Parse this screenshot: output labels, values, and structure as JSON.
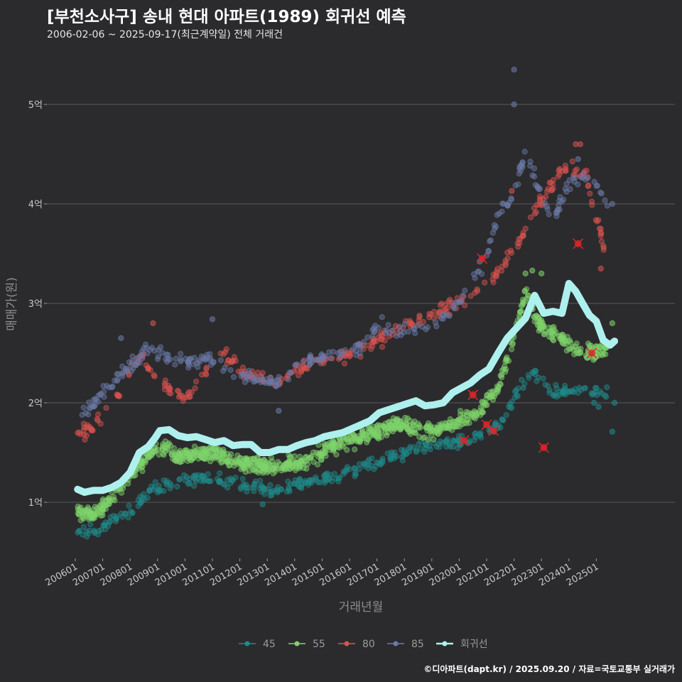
{
  "chart_data": {
    "type": "scatter",
    "title": "[부천소사구] 송내 현대 아파트(1989) 회귀선 예측",
    "subtitle": "2006-02-06 ~ 2025-09-17(최근계약일) 전체 거래건",
    "xlabel": "거래년월",
    "ylabel": "매매가(원)",
    "caption": "©디아파트(dapt.kr) / 2025.09.20 / 자료=국토교통부 실거래가",
    "xlim": [
      "2006-01",
      "2025-10"
    ],
    "ylim": [
      0.45,
      5.6
    ],
    "y_unit": "억",
    "y_ticks": [
      {
        "value": 1,
        "label": "1억"
      },
      {
        "value": 2,
        "label": "2억"
      },
      {
        "value": 3,
        "label": "3억"
      },
      {
        "value": 4,
        "label": "4억"
      },
      {
        "value": 5,
        "label": "5억"
      }
    ],
    "x_ticks": [
      "200601",
      "200701",
      "200801",
      "200901",
      "201001",
      "201101",
      "201201",
      "201301",
      "201401",
      "201501",
      "201601",
      "201701",
      "201801",
      "201901",
      "202001",
      "202101",
      "202201",
      "202301",
      "202401",
      "202501"
    ],
    "grid": "horizontal",
    "legend_position": "bottom",
    "colors": {
      "45": "#1f8a8a",
      "55": "#7ed36a",
      "80": "#d9534f",
      "85": "#6b7aa8",
      "회귀선": "#aef0ee",
      "cancelled": "#e0262a"
    },
    "series": [
      {
        "name": "45",
        "anchors": [
          [
            "2006-02",
            0.72
          ],
          [
            "2006-09",
            0.7
          ],
          [
            "2007-03",
            0.78
          ],
          [
            "2007-10",
            0.85
          ],
          [
            "2008-03",
            0.95
          ],
          [
            "2008-09",
            1.12
          ],
          [
            "2009-06",
            1.18
          ],
          [
            "2010-01",
            1.22
          ],
          [
            "2010-09",
            1.25
          ],
          [
            "2011-06",
            1.22
          ],
          [
            "2012-06",
            1.15
          ],
          [
            "2013-03",
            1.12
          ],
          [
            "2014-01",
            1.18
          ],
          [
            "2014-09",
            1.22
          ],
          [
            "2015-06",
            1.25
          ],
          [
            "2016-03",
            1.32
          ],
          [
            "2016-09",
            1.38
          ],
          [
            "2017-06",
            1.45
          ],
          [
            "2018-03",
            1.52
          ],
          [
            "2018-09",
            1.55
          ],
          [
            "2019-06",
            1.58
          ],
          [
            "2020-03",
            1.62
          ],
          [
            "2020-09",
            1.65
          ],
          [
            "2021-03",
            1.72
          ],
          [
            "2021-09",
            1.85
          ],
          [
            "2022-03",
            2.15
          ],
          [
            "2022-09",
            2.3
          ],
          [
            "2023-06",
            2.1
          ],
          [
            "2024-03",
            2.15
          ],
          [
            "2024-09",
            2.12
          ],
          [
            "2025-06",
            2.1
          ]
        ],
        "outliers": [
          [
            "2012-11",
            0.98
          ],
          [
            "2022-05",
            2.15
          ],
          [
            "2024-12",
            2.0
          ],
          [
            "2025-02",
            1.96
          ],
          [
            "2025-08",
            1.71
          ],
          [
            "2025-09",
            2.0
          ]
        ],
        "cancelled": [
          [
            "2021-04",
            1.72
          ],
          [
            "2023-02",
            1.55
          ]
        ]
      },
      {
        "name": "55",
        "anchors": [
          [
            "2006-02",
            0.9
          ],
          [
            "2006-08",
            0.88
          ],
          [
            "2007-01",
            0.92
          ],
          [
            "2007-05",
            1.05
          ],
          [
            "2007-10",
            1.15
          ],
          [
            "2008-04",
            1.35
          ],
          [
            "2008-10",
            1.5
          ],
          [
            "2009-04",
            1.55
          ],
          [
            "2009-10",
            1.45
          ],
          [
            "2010-06",
            1.5
          ],
          [
            "2011-03",
            1.48
          ],
          [
            "2011-09",
            1.42
          ],
          [
            "2012-06",
            1.38
          ],
          [
            "2013-03",
            1.35
          ],
          [
            "2013-09",
            1.38
          ],
          [
            "2014-06",
            1.42
          ],
          [
            "2015-01",
            1.5
          ],
          [
            "2015-09",
            1.6
          ],
          [
            "2016-06",
            1.65
          ],
          [
            "2017-03",
            1.72
          ],
          [
            "2017-09",
            1.78
          ],
          [
            "2018-06",
            1.75
          ],
          [
            "2019-03",
            1.72
          ],
          [
            "2019-09",
            1.78
          ],
          [
            "2020-06",
            1.85
          ],
          [
            "2020-12",
            2.0
          ],
          [
            "2021-06",
            2.15
          ],
          [
            "2021-12",
            2.6
          ],
          [
            "2022-06",
            3.1
          ],
          [
            "2022-12",
            2.8
          ],
          [
            "2023-06",
            2.7
          ],
          [
            "2024-03",
            2.55
          ],
          [
            "2024-09",
            2.5
          ],
          [
            "2025-06",
            2.55
          ]
        ],
        "outliers": [
          [
            "2022-06",
            3.3
          ],
          [
            "2022-09",
            3.33
          ],
          [
            "2023-01",
            3.3
          ],
          [
            "2025-08",
            2.8
          ]
        ],
        "cancelled": [
          [
            "2020-03",
            1.62
          ],
          [
            "2020-07",
            2.08
          ],
          [
            "2021-01",
            1.78
          ],
          [
            "2024-11",
            2.5
          ]
        ]
      },
      {
        "name": "80",
        "anchors": [
          [
            "2006-02",
            1.65
          ],
          [
            "2006-07",
            1.75
          ],
          [
            "2007-01",
            1.85
          ],
          [
            "2007-06",
            2.0
          ],
          [
            "2008-01",
            2.35
          ],
          [
            "2008-06",
            2.45
          ],
          [
            "2009-03",
            2.2
          ],
          [
            "2009-09",
            2.1
          ],
          [
            "2010-03",
            2.05
          ],
          [
            "2010-09",
            2.3
          ],
          [
            "2011-06",
            2.5
          ],
          [
            "2012-03",
            2.3
          ],
          [
            "2012-09",
            2.25
          ],
          [
            "2013-06",
            2.2
          ],
          [
            "2014-03",
            2.35
          ],
          [
            "2014-09",
            2.4
          ],
          [
            "2015-06",
            2.45
          ],
          [
            "2016-03",
            2.5
          ],
          [
            "2016-09",
            2.55
          ],
          [
            "2017-06",
            2.7
          ],
          [
            "2018-03",
            2.8
          ],
          [
            "2018-09",
            2.85
          ],
          [
            "2019-06",
            2.95
          ],
          [
            "2020-03",
            3.05
          ],
          [
            "2020-09",
            3.15
          ],
          [
            "2021-06",
            3.3
          ],
          [
            "2022-03",
            3.6
          ],
          [
            "2022-09",
            3.9
          ],
          [
            "2023-06",
            4.2
          ],
          [
            "2024-01",
            4.4
          ],
          [
            "2024-09",
            4.25
          ],
          [
            "2025-06",
            3.4
          ]
        ],
        "outliers": [
          [
            "2008-11",
            2.8
          ],
          [
            "2021-12",
            4.13
          ],
          [
            "2023-09",
            4.35
          ],
          [
            "2024-04",
            4.6
          ],
          [
            "2024-06",
            4.6
          ],
          [
            "2025-03",
            3.35
          ]
        ],
        "cancelled": [
          [
            "2020-11",
            3.45
          ],
          [
            "2024-05",
            3.6
          ]
        ]
      },
      {
        "name": "85",
        "anchors": [
          [
            "2006-04",
            1.9
          ],
          [
            "2006-09",
            2.0
          ],
          [
            "2007-03",
            2.15
          ],
          [
            "2007-09",
            2.3
          ],
          [
            "2008-03",
            2.4
          ],
          [
            "2008-09",
            2.55
          ],
          [
            "2009-06",
            2.45
          ],
          [
            "2010-03",
            2.4
          ],
          [
            "2010-09",
            2.45
          ],
          [
            "2011-06",
            2.35
          ],
          [
            "2012-06",
            2.25
          ],
          [
            "2013-06",
            2.2
          ],
          [
            "2014-03",
            2.4
          ],
          [
            "2014-09",
            2.45
          ],
          [
            "2015-06",
            2.5
          ],
          [
            "2016-06",
            2.55
          ],
          [
            "2017-03",
            2.8
          ],
          [
            "2017-09",
            2.7
          ],
          [
            "2018-06",
            2.75
          ],
          [
            "2019-03",
            2.8
          ],
          [
            "2019-09",
            2.9
          ],
          [
            "2020-06",
            3.2
          ],
          [
            "2020-12",
            3.4
          ],
          [
            "2021-06",
            3.9
          ],
          [
            "2022-01",
            4.1
          ],
          [
            "2022-06",
            4.5
          ],
          [
            "2023-06",
            3.8
          ],
          [
            "2024-01",
            4.2
          ],
          [
            "2024-09",
            4.3
          ],
          [
            "2025-06",
            4.0
          ]
        ],
        "outliers": [
          [
            "2007-09",
            2.65
          ],
          [
            "2011-01",
            2.84
          ],
          [
            "2013-06",
            1.92
          ],
          [
            "2020-10",
            3.42
          ],
          [
            "2022-01",
            5.35
          ],
          [
            "2022-01",
            5.0
          ],
          [
            "2024-05",
            4.45
          ],
          [
            "2025-08",
            4.0
          ]
        ],
        "cancelled": []
      },
      {
        "name": "회귀선",
        "type": "line",
        "points": [
          [
            "2006-02",
            1.13
          ],
          [
            "2006-05",
            1.1
          ],
          [
            "2006-09",
            1.12
          ],
          [
            "2007-01",
            1.12
          ],
          [
            "2007-05",
            1.15
          ],
          [
            "2007-09",
            1.2
          ],
          [
            "2008-01",
            1.3
          ],
          [
            "2008-05",
            1.5
          ],
          [
            "2008-09",
            1.56
          ],
          [
            "2008-12",
            1.65
          ],
          [
            "2009-02",
            1.72
          ],
          [
            "2009-06",
            1.73
          ],
          [
            "2009-10",
            1.67
          ],
          [
            "2010-02",
            1.65
          ],
          [
            "2010-06",
            1.66
          ],
          [
            "2010-10",
            1.63
          ],
          [
            "2011-02",
            1.6
          ],
          [
            "2011-06",
            1.62
          ],
          [
            "2011-10",
            1.57
          ],
          [
            "2012-02",
            1.58
          ],
          [
            "2012-06",
            1.58
          ],
          [
            "2012-10",
            1.5
          ],
          [
            "2013-02",
            1.5
          ],
          [
            "2013-06",
            1.53
          ],
          [
            "2013-10",
            1.53
          ],
          [
            "2014-02",
            1.57
          ],
          [
            "2014-06",
            1.6
          ],
          [
            "2014-10",
            1.62
          ],
          [
            "2015-02",
            1.66
          ],
          [
            "2015-06",
            1.68
          ],
          [
            "2015-10",
            1.7
          ],
          [
            "2016-02",
            1.74
          ],
          [
            "2016-06",
            1.78
          ],
          [
            "2016-10",
            1.82
          ],
          [
            "2017-02",
            1.9
          ],
          [
            "2017-06",
            1.93
          ],
          [
            "2017-10",
            1.96
          ],
          [
            "2018-02",
            1.99
          ],
          [
            "2018-06",
            2.02
          ],
          [
            "2018-10",
            1.97
          ],
          [
            "2019-02",
            1.98
          ],
          [
            "2019-06",
            2.0
          ],
          [
            "2019-10",
            2.1
          ],
          [
            "2020-02",
            2.15
          ],
          [
            "2020-06",
            2.2
          ],
          [
            "2020-10",
            2.28
          ],
          [
            "2021-02",
            2.34
          ],
          [
            "2021-06",
            2.5
          ],
          [
            "2021-10",
            2.65
          ],
          [
            "2022-02",
            2.75
          ],
          [
            "2022-06",
            2.85
          ],
          [
            "2022-10",
            3.08
          ],
          [
            "2023-02",
            2.9
          ],
          [
            "2023-06",
            2.92
          ],
          [
            "2023-10",
            2.9
          ],
          [
            "2024-01",
            3.2
          ],
          [
            "2024-04",
            3.12
          ],
          [
            "2024-07",
            3.0
          ],
          [
            "2024-10",
            2.88
          ],
          [
            "2025-01",
            2.82
          ],
          [
            "2025-04",
            2.63
          ],
          [
            "2025-07",
            2.58
          ],
          [
            "2025-09",
            2.62
          ]
        ]
      }
    ],
    "legend": [
      "45",
      "55",
      "80",
      "85",
      "회귀선"
    ]
  }
}
